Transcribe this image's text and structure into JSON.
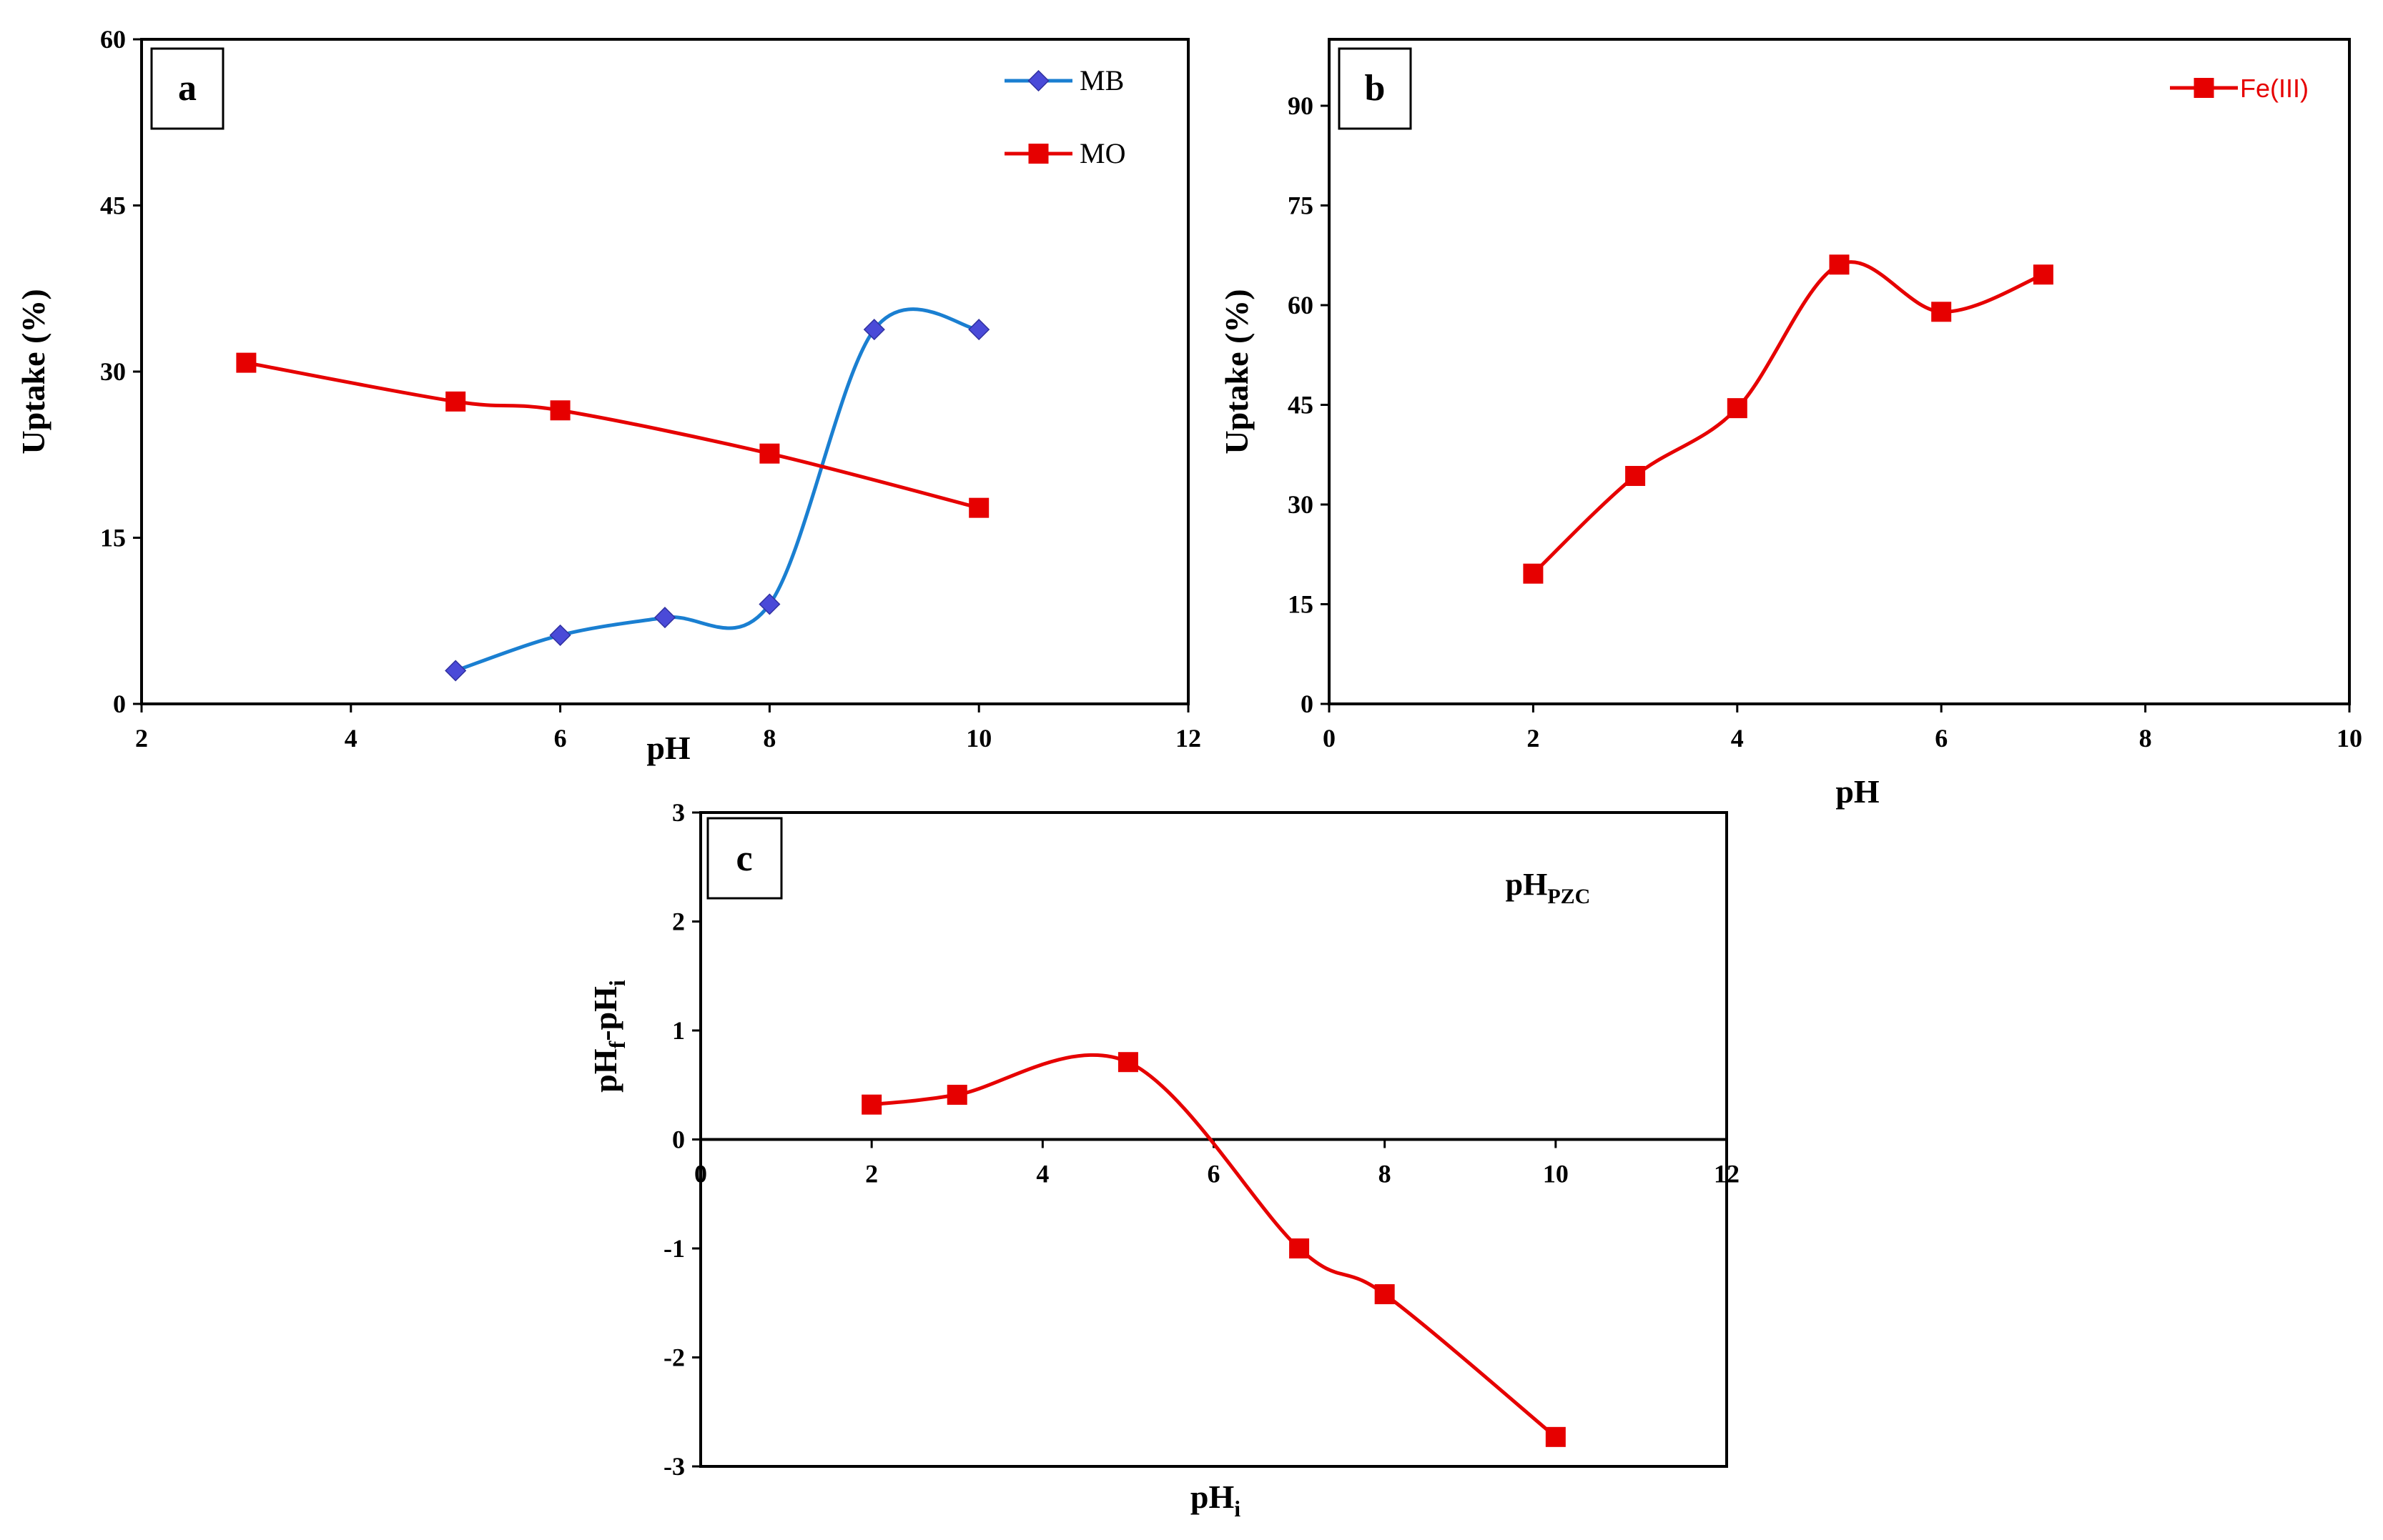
{
  "chart_data": [
    {
      "panel": "a",
      "type": "line",
      "xlabel": "pH",
      "ylabel": "Uptake (%)",
      "xlim": [
        2,
        12
      ],
      "ylim": [
        0,
        60
      ],
      "xticks": [
        2,
        4,
        6,
        8,
        10,
        12
      ],
      "yticks": [
        0,
        15,
        30,
        45,
        60
      ],
      "legend": "top-right",
      "series": [
        {
          "name": "MB",
          "color": "#1a7fd1",
          "marker": "diamond",
          "marker_color": "#4a4ad8",
          "x": [
            5,
            6,
            7,
            8,
            9,
            10
          ],
          "y": [
            3.0,
            6.2,
            7.8,
            9.0,
            33.8,
            33.8
          ]
        },
        {
          "name": "MO",
          "color": "#e60000",
          "marker": "square",
          "marker_color": "#e60000",
          "x": [
            3,
            5,
            6,
            8,
            10
          ],
          "y": [
            30.8,
            27.3,
            26.5,
            22.6,
            17.7
          ]
        }
      ]
    },
    {
      "panel": "b",
      "type": "line",
      "xlabel": "pH",
      "ylabel": "Uptake (%)",
      "xlim": [
        0,
        10
      ],
      "ylim": [
        0,
        100
      ],
      "xticks": [
        0,
        2,
        4,
        6,
        8,
        10
      ],
      "yticks": [
        0,
        15,
        30,
        45,
        60,
        75,
        90
      ],
      "legend": "top-right",
      "series": [
        {
          "name": "Fe(III)",
          "color": "#e60000",
          "marker": "square",
          "marker_color": "#e60000",
          "x": [
            2,
            3,
            4,
            5,
            6,
            7
          ],
          "y": [
            19.6,
            34.3,
            44.5,
            66.1,
            59.0,
            64.6
          ]
        }
      ]
    },
    {
      "panel": "c",
      "type": "line",
      "xlabel": {
        "main": "pH",
        "sub": "i"
      },
      "ylabel": {
        "p1": "pH",
        "s1": "f",
        "p2": "-pH",
        "s2": "i"
      },
      "xlim": [
        0,
        12
      ],
      "ylim": [
        -3,
        3
      ],
      "xticks": [
        0,
        2,
        4,
        6,
        8,
        10,
        12
      ],
      "yticks": [
        -3,
        -2,
        -1,
        0,
        1,
        2,
        3
      ],
      "annotation": {
        "main": "pH",
        "sub": "PZC"
      },
      "series": [
        {
          "name": "pHf-pHi",
          "color": "#e60000",
          "marker": "square",
          "marker_color": "#e60000",
          "x": [
            2,
            3,
            5,
            7,
            8,
            10
          ],
          "y": [
            0.32,
            0.41,
            0.71,
            -1.0,
            -1.42,
            -2.73
          ]
        }
      ]
    }
  ]
}
